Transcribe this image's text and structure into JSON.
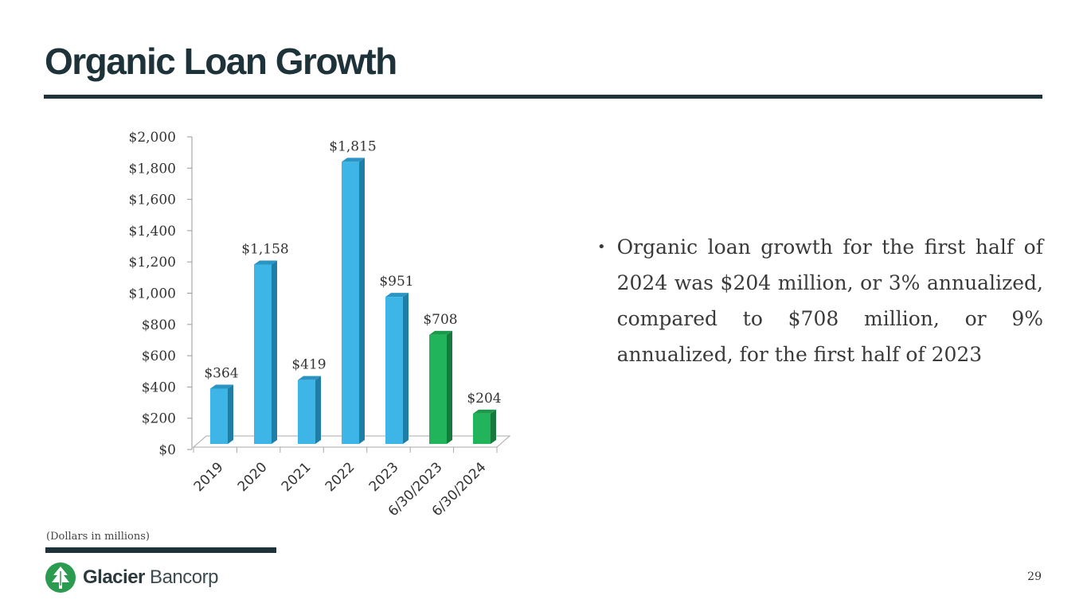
{
  "slide": {
    "title": "Organic Loan Growth",
    "footnote": "(Dollars in millions)",
    "page_number": "29"
  },
  "bullet": {
    "text": "Organic loan growth for the first half of 2024 was $204 million, or 3% annualized,  compared to $708 million, or 9% annualized, for the first half of 2023"
  },
  "logo": {
    "bold": "Glacier",
    "light": " Bancorp",
    "icon": "tree-icon"
  },
  "colors": {
    "title": "#1e3339",
    "bar_blue": "#3db5e6",
    "bar_blue_side": "#1f7ea6",
    "bar_blue_top": "#2a95c3",
    "bar_green": "#22b45a",
    "bar_green_side": "#167a3c",
    "bar_green_top": "#1c9a4c",
    "logo_green": "#2a9b4f"
  },
  "chart_data": {
    "type": "bar",
    "title": "",
    "xlabel": "",
    "ylabel": "",
    "ylim": [
      0,
      2000
    ],
    "ytick_step": 200,
    "ytick_labels": [
      "$0",
      "$200",
      "$400",
      "$600",
      "$800",
      "$1,000",
      "$1,200",
      "$1,400",
      "$1,600",
      "$1,800",
      "$2,000"
    ],
    "categories": [
      "2019",
      "2020",
      "2021",
      "2022",
      "2023",
      "6/30/2023",
      "6/30/2024"
    ],
    "values": [
      364,
      1158,
      419,
      1815,
      951,
      708,
      204
    ],
    "value_labels": [
      "$364",
      "$1,158",
      "$419",
      "$1,815",
      "$951",
      "$708",
      "$204"
    ],
    "bar_color_groups": [
      "blue",
      "blue",
      "blue",
      "blue",
      "blue",
      "green",
      "green"
    ],
    "grid": false,
    "legend": "none"
  }
}
